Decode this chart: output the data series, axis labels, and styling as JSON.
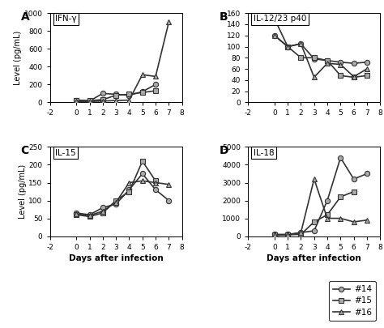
{
  "panel_A": {
    "title": "IFN-γ",
    "label": "A",
    "ylabel": "Level (pg/mL)",
    "ylim": [
      0,
      1000
    ],
    "yticks": [
      0,
      200,
      400,
      600,
      800,
      1000
    ],
    "xlim": [
      -2,
      8
    ],
    "xticks": [
      -2,
      0,
      1,
      2,
      3,
      4,
      5,
      6,
      7,
      8
    ],
    "series": {
      "14": {
        "x": [
          0,
          1,
          2,
          3,
          4,
          5,
          6
        ],
        "y": [
          20,
          15,
          100,
          90,
          80,
          120,
          200
        ]
      },
      "15": {
        "x": [
          0,
          1,
          2,
          3,
          4,
          5,
          6
        ],
        "y": [
          25,
          20,
          30,
          80,
          90,
          110,
          130
        ]
      },
      "16": {
        "x": [
          0,
          1,
          2,
          3,
          4,
          5,
          6,
          7
        ],
        "y": [
          10,
          10,
          15,
          20,
          25,
          310,
          290,
          900
        ]
      }
    }
  },
  "panel_B": {
    "title": "IL-12/23 p40",
    "label": "B",
    "ylabel": "Level (pg/mL)",
    "ylim": [
      0,
      160
    ],
    "yticks": [
      0,
      20,
      40,
      60,
      80,
      100,
      120,
      140,
      160
    ],
    "xlim": [
      -2,
      8
    ],
    "xticks": [
      -2,
      0,
      1,
      2,
      3,
      4,
      5,
      6,
      7,
      8
    ],
    "series": {
      "14": {
        "x": [
          0,
          1,
          2,
          3,
          4,
          5,
          6,
          7
        ],
        "y": [
          120,
          100,
          105,
          78,
          75,
          72,
          70,
          72
        ]
      },
      "15": {
        "x": [
          0,
          1,
          2,
          3,
          4,
          5,
          6,
          7
        ],
        "y": [
          150,
          100,
          80,
          80,
          75,
          48,
          45,
          48
        ]
      },
      "16": {
        "x": [
          0,
          1,
          2,
          3,
          4,
          5,
          6,
          7
        ],
        "y": [
          120,
          100,
          105,
          45,
          70,
          68,
          46,
          60
        ]
      }
    }
  },
  "panel_C": {
    "title": "IL-15",
    "label": "C",
    "ylabel": "Level (pg/mL)",
    "ylim": [
      0,
      250
    ],
    "yticks": [
      0,
      50,
      100,
      150,
      200,
      250
    ],
    "xlim": [
      -2,
      8
    ],
    "xticks": [
      -2,
      0,
      1,
      2,
      3,
      4,
      5,
      6,
      7,
      8
    ],
    "series": {
      "14": {
        "x": [
          0,
          1,
          2,
          3,
          4,
          5,
          6,
          7
        ],
        "y": [
          65,
          60,
          80,
          90,
          130,
          175,
          130,
          100
        ]
      },
      "15": {
        "x": [
          0,
          1,
          2,
          3,
          4,
          5,
          6
        ],
        "y": [
          60,
          55,
          65,
          100,
          125,
          210,
          155
        ]
      },
      "16": {
        "x": [
          0,
          1,
          2,
          3,
          4,
          5,
          6,
          7
        ],
        "y": [
          62,
          58,
          70,
          95,
          150,
          155,
          150,
          145
        ]
      }
    }
  },
  "panel_D": {
    "title": "IL-18",
    "label": "D",
    "ylabel": "Level (pg/mL)",
    "ylim": [
      0,
      5000
    ],
    "yticks": [
      0,
      1000,
      2000,
      3000,
      4000,
      5000
    ],
    "xlim": [
      -2,
      8
    ],
    "xticks": [
      -2,
      0,
      1,
      2,
      3,
      4,
      5,
      6,
      7,
      8
    ],
    "series": {
      "14": {
        "x": [
          0,
          1,
          2,
          3,
          4,
          5,
          6,
          7
        ],
        "y": [
          100,
          100,
          200,
          300,
          2000,
          4400,
          3200,
          3500
        ]
      },
      "15": {
        "x": [
          0,
          1,
          2,
          3,
          4,
          5,
          6
        ],
        "y": [
          50,
          80,
          100,
          800,
          1200,
          2200,
          2500
        ]
      },
      "16": {
        "x": [
          0,
          1,
          2,
          3,
          4,
          5,
          6,
          7
        ],
        "y": [
          50,
          60,
          200,
          3200,
          1000,
          1000,
          800,
          900
        ]
      }
    }
  },
  "line_color": "#333333",
  "marker_fill": "#aaaaaa",
  "marker_edge": "#333333",
  "markers": {
    "14": "o",
    "15": "s",
    "16": "^"
  },
  "legend_labels": [
    "#14",
    "#15",
    "#16"
  ],
  "xlabel": "Days after infection",
  "background_color": "#ffffff"
}
